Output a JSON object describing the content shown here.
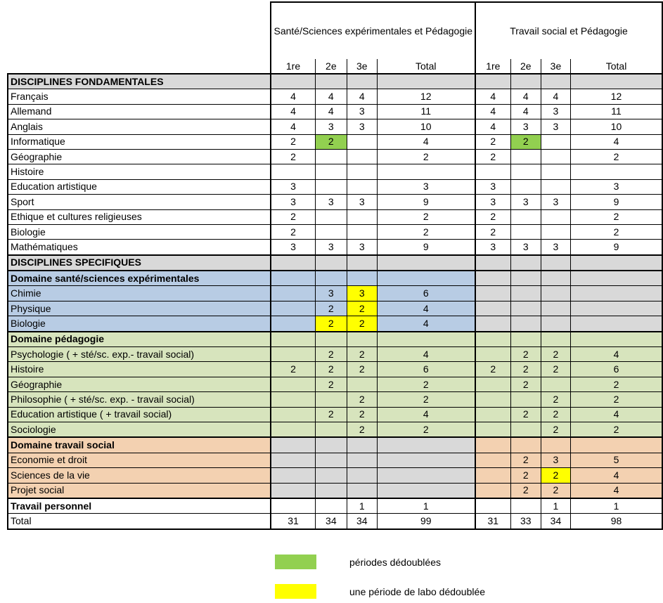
{
  "colors": {
    "section": "#d9d9d9",
    "blue": "#b8cce4",
    "green": "#d7e4bd",
    "orange": "#f3d1b1",
    "gray": "#d9d9d9",
    "green_hl": "#92d050",
    "yellow_hl": "#ffff00"
  },
  "header": {
    "group1": "Santé/Sciences expérimentales et Pédagogie",
    "group2": "Travail social et Pédagogie",
    "columns": [
      "1re",
      "2e",
      "3e",
      "Total",
      "1re",
      "2e",
      "3e",
      "Total"
    ]
  },
  "rows": [
    {
      "label": "DISCIPLINES FONDAMENTALES",
      "bold": true,
      "style": "section",
      "values": [
        "",
        "",
        "",
        "",
        "",
        "",
        "",
        ""
      ]
    },
    {
      "label": "Français",
      "style": "white",
      "values": [
        "4",
        "4",
        "4",
        "12",
        "4",
        "4",
        "4",
        "12"
      ]
    },
    {
      "label": "Allemand",
      "style": "white",
      "values": [
        "4",
        "4",
        "3",
        "11",
        "4",
        "4",
        "3",
        "11"
      ]
    },
    {
      "label": "Anglais",
      "style": "white",
      "values": [
        "4",
        "3",
        "3",
        "10",
        "4",
        "3",
        "3",
        "10"
      ]
    },
    {
      "label": "Informatique",
      "style": "white",
      "values": [
        "2",
        "2",
        "",
        "4",
        "2",
        "2",
        "",
        "4"
      ],
      "hl": {
        "1": "green",
        "5": "green"
      }
    },
    {
      "label": "Géographie",
      "style": "white",
      "values": [
        "2",
        "",
        "",
        "2",
        "2",
        "",
        "",
        "2"
      ]
    },
    {
      "label": "Histoire",
      "style": "white",
      "values": [
        "",
        "",
        "",
        "",
        "",
        "",
        "",
        ""
      ]
    },
    {
      "label": "Education artistique",
      "style": "white",
      "values": [
        "3",
        "",
        "",
        "3",
        "3",
        "",
        "",
        "3"
      ]
    },
    {
      "label": "Sport",
      "style": "white",
      "values": [
        "3",
        "3",
        "3",
        "9",
        "3",
        "3",
        "3",
        "9"
      ]
    },
    {
      "label": "Ethique et cultures religieuses",
      "style": "white",
      "values": [
        "2",
        "",
        "",
        "2",
        "2",
        "",
        "",
        "2"
      ]
    },
    {
      "label": "Biologie",
      "style": "white",
      "values": [
        "2",
        "",
        "",
        "2",
        "2",
        "",
        "",
        "2"
      ]
    },
    {
      "label": "Mathématiques",
      "style": "white",
      "values": [
        "3",
        "3",
        "3",
        "9",
        "3",
        "3",
        "3",
        "9"
      ]
    },
    {
      "label": "DISCIPLINES SPECIFIQUES",
      "bold": true,
      "style": "section",
      "thick": true,
      "values": [
        "",
        "",
        "",
        "",
        "",
        "",
        "",
        ""
      ]
    },
    {
      "label": "Domaine santé/sciences expérimentales",
      "bold": true,
      "style": "blue",
      "thick": true,
      "values": [
        "",
        "",
        "",
        "",
        "",
        "",
        "",
        ""
      ]
    },
    {
      "label": "Chimie",
      "style": "blue",
      "values": [
        "",
        "3",
        "3",
        "6",
        "",
        "",
        "",
        ""
      ],
      "hl": {
        "2": "yellow"
      }
    },
    {
      "label": "Physique",
      "style": "blue",
      "values": [
        "",
        "2",
        "2",
        "4",
        "",
        "",
        "",
        ""
      ],
      "hl": {
        "2": "yellow"
      }
    },
    {
      "label": "Biologie",
      "style": "blue",
      "values": [
        "",
        "2",
        "2",
        "4",
        "",
        "",
        "",
        ""
      ],
      "hl": {
        "1": "yellow",
        "2": "yellow"
      }
    },
    {
      "label": "Domaine pédagogie",
      "bold": true,
      "style": "green",
      "thick": true,
      "values": [
        "",
        "",
        "",
        "",
        "",
        "",
        "",
        ""
      ]
    },
    {
      "label": "Psychologie ( + sté/sc. exp.- travail social)",
      "style": "green",
      "values": [
        "",
        "2",
        "2",
        "4",
        "",
        "2",
        "2",
        "4"
      ]
    },
    {
      "label": "Histoire",
      "style": "green",
      "values": [
        "2",
        "2",
        "2",
        "6",
        "2",
        "2",
        "2",
        "6"
      ]
    },
    {
      "label": "Géographie",
      "style": "green",
      "values": [
        "",
        "2",
        "",
        "2",
        "",
        "2",
        "",
        "2"
      ]
    },
    {
      "label": "Philosophie ( + sté/sc. exp. - travail social)",
      "style": "green",
      "values": [
        "",
        "",
        "2",
        "2",
        "",
        "",
        "2",
        "2"
      ]
    },
    {
      "label": "Education artistique ( + travail social)",
      "style": "green",
      "values": [
        "",
        "2",
        "2",
        "4",
        "",
        "2",
        "2",
        "4"
      ]
    },
    {
      "label": "Sociologie",
      "style": "green",
      "values": [
        "",
        "",
        "2",
        "2",
        "",
        "",
        "2",
        "2"
      ]
    },
    {
      "label": "Domaine travail social",
      "bold": true,
      "style": "orange",
      "thick": true,
      "values": [
        "",
        "",
        "",
        "",
        "",
        "",
        "",
        ""
      ]
    },
    {
      "label": "Economie et droit",
      "style": "orange",
      "values": [
        "",
        "",
        "",
        "",
        "",
        "2",
        "3",
        "5"
      ]
    },
    {
      "label": "Sciences de la vie",
      "style": "orange",
      "values": [
        "",
        "",
        "",
        "",
        "",
        "2",
        "2",
        "4"
      ],
      "hl": {
        "6": "yellow"
      }
    },
    {
      "label": "Projet social",
      "style": "orange",
      "values": [
        "",
        "",
        "",
        "",
        "",
        "2",
        "2",
        "4"
      ]
    },
    {
      "label": "Travail personnel",
      "bold": true,
      "style": "white",
      "thick": true,
      "values": [
        "",
        "",
        "1",
        "1",
        "",
        "",
        "1",
        "1"
      ]
    },
    {
      "label": "Total",
      "style": "white",
      "values": [
        "31",
        "34",
        "34",
        "99",
        "31",
        "33",
        "34",
        "98"
      ]
    }
  ],
  "legend": [
    {
      "color": "green",
      "label": "périodes dédoublées"
    },
    {
      "color": "yellow",
      "label": "une période de labo dédoublée"
    }
  ]
}
